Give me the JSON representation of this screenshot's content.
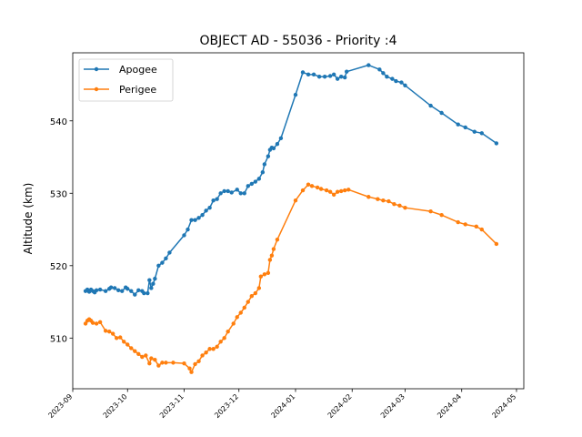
{
  "chart_data": {
    "type": "line",
    "title": "OBJECT AD - 55036 - Priority :4",
    "xlabel": "",
    "ylabel": "Altitude (km)",
    "x_axis_type": "date",
    "xlim": [
      "2023-09-01",
      "2024-05-05"
    ],
    "ylim": [
      503,
      549.4
    ],
    "x_ticks": [
      "2023-09",
      "2023-10",
      "2023-11",
      "2023-12",
      "2024-01",
      "2024-02",
      "2024-03",
      "2024-04",
      "2024-05"
    ],
    "y_ticks": [
      510,
      520,
      530,
      540
    ],
    "legend_position": "top-left",
    "grid": false,
    "series": [
      {
        "name": "Apogee",
        "color": "#1f77b4",
        "points": [
          [
            "2023-09-08",
            516.5
          ],
          [
            "2023-09-09",
            516.7
          ],
          [
            "2023-09-10",
            516.4
          ],
          [
            "2023-09-11",
            516.7
          ],
          [
            "2023-09-12",
            516.5
          ],
          [
            "2023-09-13",
            516.3
          ],
          [
            "2023-09-14",
            516.6
          ],
          [
            "2023-09-16",
            516.7
          ],
          [
            "2023-09-19",
            516.5
          ],
          [
            "2023-09-21",
            516.8
          ],
          [
            "2023-09-22",
            517.0
          ],
          [
            "2023-09-24",
            516.9
          ],
          [
            "2023-09-26",
            516.6
          ],
          [
            "2023-09-28",
            516.5
          ],
          [
            "2023-09-30",
            517.0
          ],
          [
            "2023-10-01",
            516.8
          ],
          [
            "2023-10-03",
            516.5
          ],
          [
            "2023-10-05",
            516.0
          ],
          [
            "2023-10-07",
            516.6
          ],
          [
            "2023-10-09",
            516.5
          ],
          [
            "2023-10-10",
            516.2
          ],
          [
            "2023-10-12",
            516.2
          ],
          [
            "2023-10-13",
            518.0
          ],
          [
            "2023-10-14",
            516.9
          ],
          [
            "2023-10-15",
            517.5
          ],
          [
            "2023-10-16",
            518.2
          ],
          [
            "2023-10-18",
            520.0
          ],
          [
            "2023-10-20",
            520.4
          ],
          [
            "2023-10-22",
            521.0
          ],
          [
            "2023-10-24",
            521.8
          ],
          [
            "2023-11-01",
            524.2
          ],
          [
            "2023-11-03",
            525.0
          ],
          [
            "2023-11-05",
            526.3
          ],
          [
            "2023-11-07",
            526.3
          ],
          [
            "2023-11-09",
            526.6
          ],
          [
            "2023-11-11",
            527.0
          ],
          [
            "2023-11-13",
            527.6
          ],
          [
            "2023-11-15",
            528.0
          ],
          [
            "2023-11-17",
            529.0
          ],
          [
            "2023-11-19",
            529.2
          ],
          [
            "2023-11-21",
            530.0
          ],
          [
            "2023-11-23",
            530.3
          ],
          [
            "2023-11-25",
            530.3
          ],
          [
            "2023-11-27",
            530.1
          ],
          [
            "2023-11-30",
            530.5
          ],
          [
            "2023-12-02",
            530.0
          ],
          [
            "2023-12-04",
            530.0
          ],
          [
            "2023-12-06",
            531.0
          ],
          [
            "2023-12-08",
            531.3
          ],
          [
            "2023-12-10",
            531.6
          ],
          [
            "2023-12-12",
            532.0
          ],
          [
            "2023-12-14",
            532.9
          ],
          [
            "2023-12-15",
            534.0
          ],
          [
            "2023-12-17",
            535.1
          ],
          [
            "2023-12-18",
            536.0
          ],
          [
            "2023-12-19",
            536.3
          ],
          [
            "2023-12-20",
            536.2
          ],
          [
            "2023-12-22",
            536.8
          ],
          [
            "2023-12-24",
            537.6
          ],
          [
            "2024-01-01",
            543.6
          ],
          [
            "2024-01-05",
            546.7
          ],
          [
            "2024-01-08",
            546.4
          ],
          [
            "2024-01-11",
            546.4
          ],
          [
            "2024-01-14",
            546.1
          ],
          [
            "2024-01-17",
            546.1
          ],
          [
            "2024-01-20",
            546.2
          ],
          [
            "2024-01-22",
            546.4
          ],
          [
            "2024-01-24",
            545.8
          ],
          [
            "2024-01-26",
            546.1
          ],
          [
            "2024-01-28",
            546.0
          ],
          [
            "2024-01-29",
            546.8
          ],
          [
            "2024-02-10",
            547.7
          ],
          [
            "2024-02-16",
            547.1
          ],
          [
            "2024-02-18",
            546.6
          ],
          [
            "2024-02-20",
            546.1
          ],
          [
            "2024-02-23",
            545.8
          ],
          [
            "2024-02-25",
            545.5
          ],
          [
            "2024-02-28",
            545.3
          ],
          [
            "2024-03-01",
            544.9
          ],
          [
            "2024-03-15",
            542.1
          ],
          [
            "2024-03-21",
            541.1
          ],
          [
            "2024-03-30",
            539.5
          ],
          [
            "2024-04-03",
            539.1
          ],
          [
            "2024-04-08",
            538.5
          ],
          [
            "2024-04-12",
            538.3
          ],
          [
            "2024-04-20",
            536.9
          ]
        ]
      },
      {
        "name": "Perigee",
        "color": "#ff7f0e",
        "points": [
          [
            "2023-09-08",
            512.0
          ],
          [
            "2023-09-09",
            512.4
          ],
          [
            "2023-09-10",
            512.6
          ],
          [
            "2023-09-11",
            512.4
          ],
          [
            "2023-09-12",
            512.1
          ],
          [
            "2023-09-14",
            512.0
          ],
          [
            "2023-09-16",
            512.2
          ],
          [
            "2023-09-19",
            511.0
          ],
          [
            "2023-09-21",
            510.9
          ],
          [
            "2023-09-23",
            510.6
          ],
          [
            "2023-09-25",
            510.0
          ],
          [
            "2023-09-27",
            510.1
          ],
          [
            "2023-09-29",
            509.5
          ],
          [
            "2023-10-01",
            509.1
          ],
          [
            "2023-10-03",
            508.6
          ],
          [
            "2023-10-05",
            508.2
          ],
          [
            "2023-10-07",
            507.8
          ],
          [
            "2023-10-09",
            507.4
          ],
          [
            "2023-10-11",
            507.6
          ],
          [
            "2023-10-13",
            506.5
          ],
          [
            "2023-10-14",
            507.2
          ],
          [
            "2023-10-16",
            507.0
          ],
          [
            "2023-10-18",
            506.2
          ],
          [
            "2023-10-20",
            506.6
          ],
          [
            "2023-10-22",
            506.6
          ],
          [
            "2023-10-26",
            506.6
          ],
          [
            "2023-11-01",
            506.5
          ],
          [
            "2023-11-04",
            505.8
          ],
          [
            "2023-11-05",
            505.3
          ],
          [
            "2023-11-07",
            506.4
          ],
          [
            "2023-11-09",
            506.8
          ],
          [
            "2023-11-11",
            507.6
          ],
          [
            "2023-11-13",
            508.0
          ],
          [
            "2023-11-15",
            508.5
          ],
          [
            "2023-11-17",
            508.5
          ],
          [
            "2023-11-19",
            508.8
          ],
          [
            "2023-11-21",
            509.5
          ],
          [
            "2023-11-23",
            510.0
          ],
          [
            "2023-11-25",
            510.9
          ],
          [
            "2023-11-28",
            512.0
          ],
          [
            "2023-11-30",
            512.9
          ],
          [
            "2023-12-02",
            513.5
          ],
          [
            "2023-12-04",
            514.2
          ],
          [
            "2023-12-06",
            515.0
          ],
          [
            "2023-12-08",
            515.8
          ],
          [
            "2023-12-10",
            516.2
          ],
          [
            "2023-12-12",
            516.9
          ],
          [
            "2023-12-13",
            518.5
          ],
          [
            "2023-12-15",
            518.8
          ],
          [
            "2023-12-17",
            519.0
          ],
          [
            "2023-12-18",
            520.8
          ],
          [
            "2023-12-19",
            521.4
          ],
          [
            "2023-12-20",
            522.3
          ],
          [
            "2023-12-22",
            523.6
          ],
          [
            "2024-01-01",
            529.0
          ],
          [
            "2024-01-05",
            530.4
          ],
          [
            "2024-01-08",
            531.2
          ],
          [
            "2024-01-10",
            531.0
          ],
          [
            "2024-01-13",
            530.8
          ],
          [
            "2024-01-15",
            530.6
          ],
          [
            "2024-01-18",
            530.4
          ],
          [
            "2024-01-20",
            530.2
          ],
          [
            "2024-01-22",
            529.8
          ],
          [
            "2024-01-24",
            530.2
          ],
          [
            "2024-01-26",
            530.3
          ],
          [
            "2024-01-28",
            530.4
          ],
          [
            "2024-01-30",
            530.5
          ],
          [
            "2024-02-10",
            529.5
          ],
          [
            "2024-02-15",
            529.2
          ],
          [
            "2024-02-18",
            529.0
          ],
          [
            "2024-02-21",
            528.9
          ],
          [
            "2024-02-24",
            528.5
          ],
          [
            "2024-02-27",
            528.3
          ],
          [
            "2024-03-01",
            528.0
          ],
          [
            "2024-03-15",
            527.5
          ],
          [
            "2024-03-21",
            527.0
          ],
          [
            "2024-03-30",
            526.0
          ],
          [
            "2024-04-03",
            525.7
          ],
          [
            "2024-04-09",
            525.4
          ],
          [
            "2024-04-12",
            525.0
          ],
          [
            "2024-04-20",
            523.0
          ]
        ]
      }
    ]
  }
}
